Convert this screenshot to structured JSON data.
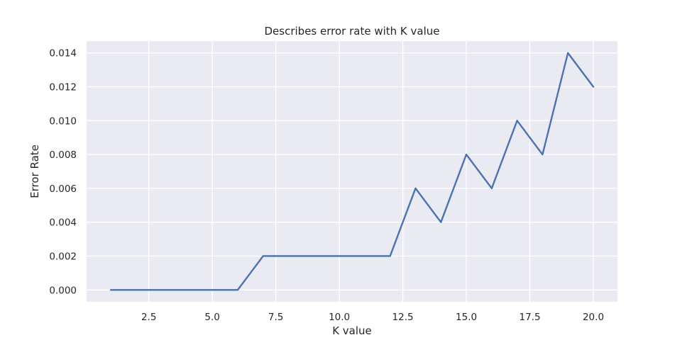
{
  "chart_data": {
    "type": "line",
    "title": "Describes error rate with K value",
    "xlabel": "K value",
    "ylabel": "Error Rate",
    "xlim": [
      0.05,
      20.95
    ],
    "ylim": [
      -0.0007,
      0.0147
    ],
    "xticks": [
      2.5,
      5.0,
      7.5,
      10.0,
      12.5,
      15.0,
      17.5,
      20.0
    ],
    "xtick_labels": [
      "2.5",
      "5.0",
      "7.5",
      "10.0",
      "12.5",
      "15.0",
      "17.5",
      "20.0"
    ],
    "yticks": [
      0.0,
      0.002,
      0.004,
      0.006,
      0.008,
      0.01,
      0.012,
      0.014
    ],
    "ytick_labels": [
      "0.000",
      "0.002",
      "0.004",
      "0.006",
      "0.008",
      "0.010",
      "0.012",
      "0.014"
    ],
    "grid": true,
    "series": [
      {
        "color": "#4c72b0",
        "x": [
          1,
          2,
          3,
          4,
          5,
          6,
          7,
          8,
          9,
          10,
          11,
          12,
          13,
          14,
          15,
          16,
          17,
          18,
          19,
          20
        ],
        "y": [
          0.0,
          0.0,
          0.0,
          0.0,
          0.0,
          0.0,
          0.002,
          0.002,
          0.002,
          0.002,
          0.002,
          0.002,
          0.006,
          0.004,
          0.008,
          0.006,
          0.01,
          0.008,
          0.014,
          0.012
        ]
      }
    ]
  }
}
